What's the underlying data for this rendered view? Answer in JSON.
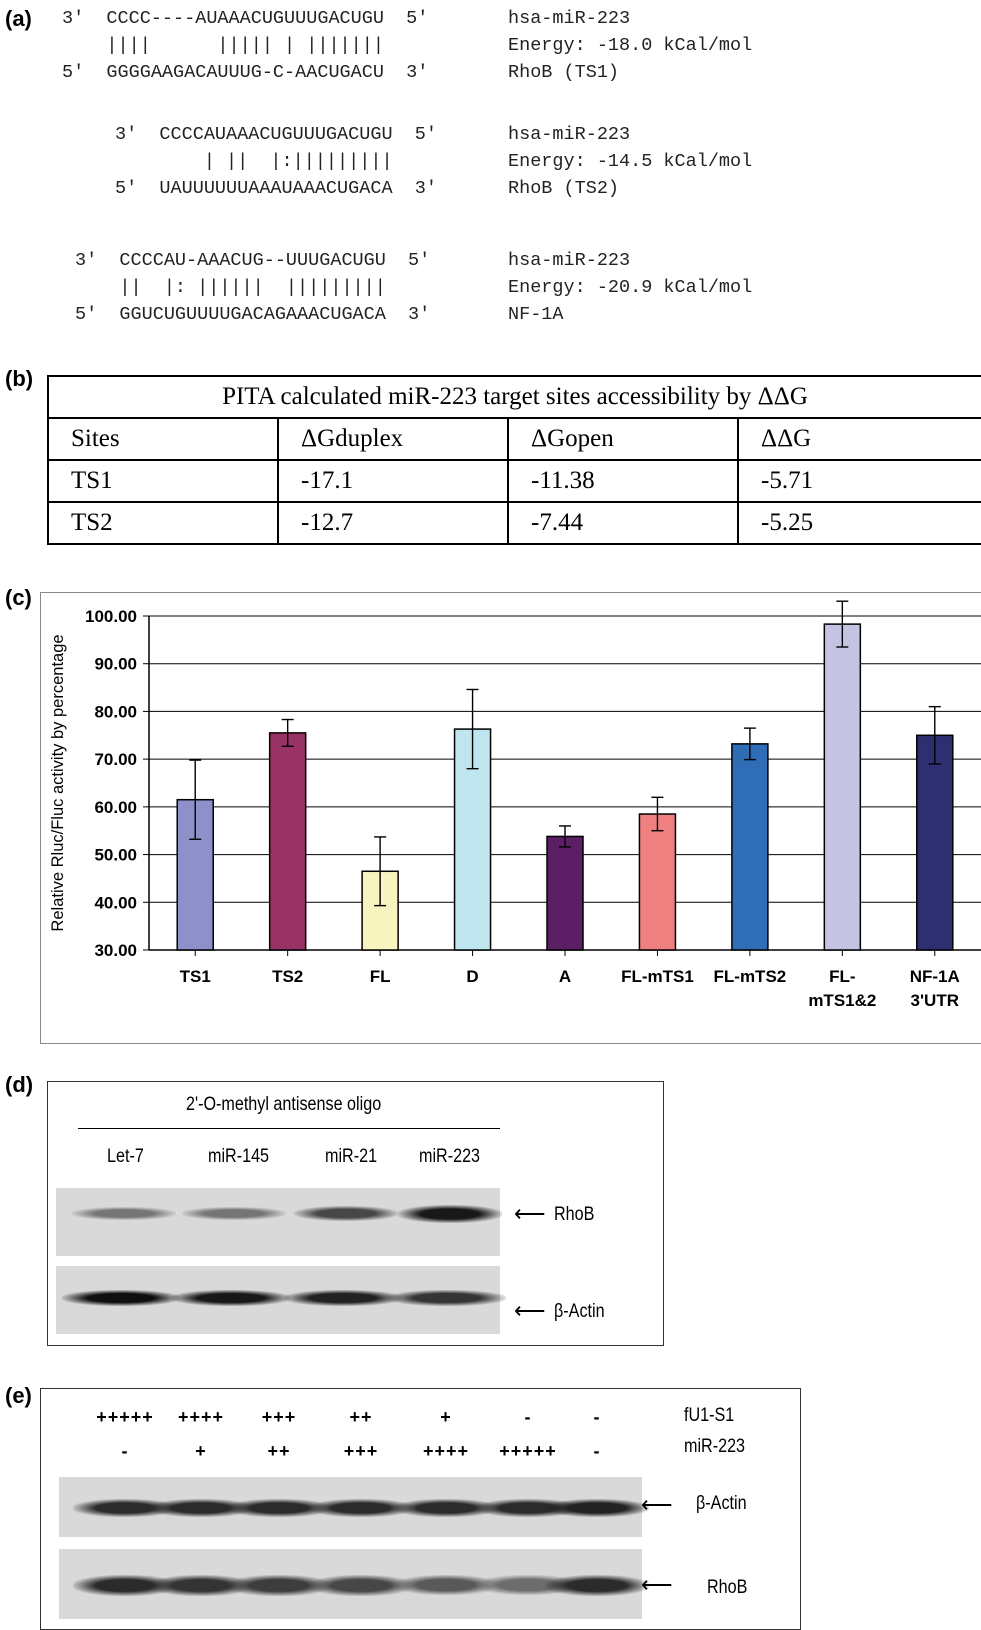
{
  "panels": {
    "a": "(a)",
    "b": "(b)",
    "c": "(c)",
    "d": "(d)",
    "e": "(e)"
  },
  "alignments": [
    {
      "top": "3'  CCCC----AUAAACUGUUUGACUGU  5'",
      "mid": "    ||||      ||||| | |||||||",
      "bot": "5'  GGGGAAGACAUUUG-C-AACUGACU  3'",
      "mirna": "hsa-miR-223",
      "energy": "Energy: -18.0 kCal/mol",
      "target": "RhoB (TS1)"
    },
    {
      "top": "3'  CCCCAUAAACUGUUUGACUGU  5'",
      "mid": "        | ||  |:|||||||||",
      "bot": "5'  UAUUUUUUAAAUAAACUGACA  3'",
      "mirna": "hsa-miR-223",
      "energy": "Energy: -14.5 kCal/mol",
      "target": "RhoB (TS2)"
    },
    {
      "top": "3'  CCCCAU-AAACUG--UUUGACUGU  5'",
      "mid": "    ||  |: ||||||  |||||||||",
      "bot": "5'  GGUCUGUUUUGACAGAAACUGACA  3'",
      "mirna": "hsa-miR-223",
      "energy": "Energy: -20.9 kCal/mol",
      "target": "NF-1A"
    }
  ],
  "pita_table": {
    "title": "PITA calculated miR-223 target sites accessibility by ΔΔG",
    "headers": [
      "Sites",
      "ΔGduplex",
      "ΔGopen",
      "ΔΔG"
    ],
    "rows": [
      [
        "TS1",
        "-17.1",
        "-11.38",
        "-5.71"
      ],
      [
        "TS2",
        "-12.7",
        "-7.44",
        "-5.25"
      ]
    ]
  },
  "chart_data": {
    "type": "bar",
    "ylabel": "Relative Rluc/Fluc activity  by percentage",
    "ylim": [
      30,
      100
    ],
    "yticks": [
      "100.00",
      "90.00",
      "80.00",
      "70.00",
      "60.00",
      "50.00",
      "40.00",
      "30.00"
    ],
    "grid": true,
    "categories": [
      "TS1",
      "TS2",
      "FL",
      "D",
      "A",
      "FL-mTS1",
      "FL-mTS2",
      "FL-\nmTS1&2",
      "NF-1A\n3'UTR"
    ],
    "values": [
      61.5,
      75.5,
      46.5,
      76.3,
      53.8,
      58.5,
      73.2,
      98.3,
      75.0
    ],
    "errors": [
      8.3,
      2.8,
      7.2,
      8.3,
      2.2,
      3.5,
      3.3,
      4.8,
      6.0
    ],
    "colors": [
      "#8e91c9",
      "#993366",
      "#f8f4c0",
      "#bfe6ee",
      "#5c1f66",
      "#f08080",
      "#2f6db7",
      "#c4c4e2",
      "#2d2f70"
    ]
  },
  "western_d": {
    "header": "2'-O-methyl antisense oligo",
    "lanes": [
      "Let-7",
      "miR-145",
      "miR-21",
      "miR-223"
    ],
    "band_labels": [
      "RhoB",
      "β-Actin"
    ],
    "rhob_intensity": [
      0.45,
      0.45,
      0.7,
      0.95
    ],
    "actin_intensity": [
      1.0,
      0.95,
      0.9,
      0.8
    ]
  },
  "western_e": {
    "row_labels": [
      "fU1-S1",
      "miR-223"
    ],
    "fu1": [
      "+++++",
      "++++",
      "+++",
      "++",
      "+",
      "-",
      "-"
    ],
    "mir": [
      "-",
      "+",
      "++",
      "+++",
      "++++",
      "+++++",
      "-"
    ],
    "band_labels": [
      "β-Actin",
      "RhoB"
    ],
    "actin_intensity": [
      0.85,
      0.85,
      0.85,
      0.85,
      0.85,
      0.85,
      0.9
    ],
    "rhob_intensity": [
      0.85,
      0.8,
      0.75,
      0.7,
      0.6,
      0.5,
      0.85
    ]
  }
}
